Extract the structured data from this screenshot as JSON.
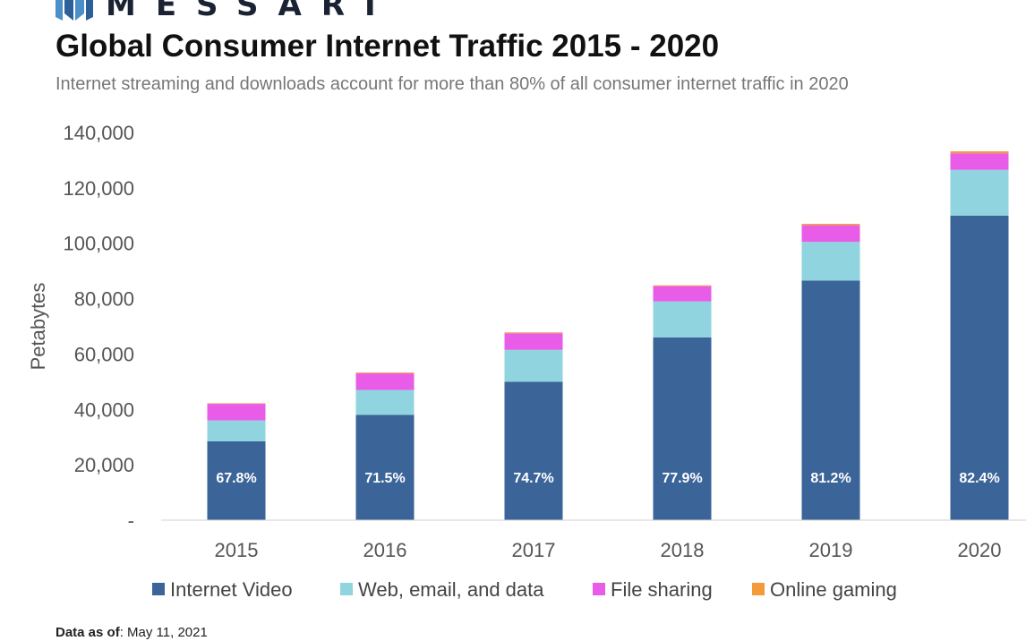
{
  "brand": {
    "name": "MESSARI",
    "logo_icon": "messari-logo-icon"
  },
  "header": {
    "title": "Global Consumer Internet Traffic 2015 - 2020",
    "subtitle": "Internet streaming and downloads account for more than 80% of all consumer internet traffic in 2020"
  },
  "footer": {
    "label": "Data as of",
    "value": "May 11, 2021"
  },
  "chart_data": {
    "type": "bar",
    "stacked": true,
    "categories": [
      "2015",
      "2016",
      "2017",
      "2018",
      "2019",
      "2020"
    ],
    "series": [
      {
        "name": "Internet Video",
        "color": "#3b6499",
        "values": [
          28500,
          38000,
          50000,
          66000,
          86500,
          110000
        ]
      },
      {
        "name": "Web, email, and data",
        "color": "#8fd4de",
        "values": [
          7500,
          9000,
          11500,
          13000,
          14000,
          16500
        ]
      },
      {
        "name": "File sharing",
        "color": "#e85ce8",
        "values": [
          6000,
          6000,
          6000,
          5500,
          6000,
          6000
        ]
      },
      {
        "name": "Online gaming",
        "color": "#f39a3b",
        "values": [
          200,
          300,
          300,
          300,
          500,
          700
        ]
      }
    ],
    "data_labels": [
      "67.8%",
      "71.5%",
      "74.7%",
      "77.9%",
      "81.2%",
      "82.4%"
    ],
    "ylabel": "Petabytes",
    "xlabel": "",
    "ylim": [
      0,
      140000
    ],
    "yticks": [
      0,
      20000,
      40000,
      60000,
      80000,
      100000,
      120000,
      140000
    ],
    "ytick_labels": [
      "-",
      "20,000",
      "40,000",
      "60,000",
      "80,000",
      "100,000",
      "120,000",
      "140,000"
    ],
    "grid": false,
    "legend_position": "bottom"
  }
}
